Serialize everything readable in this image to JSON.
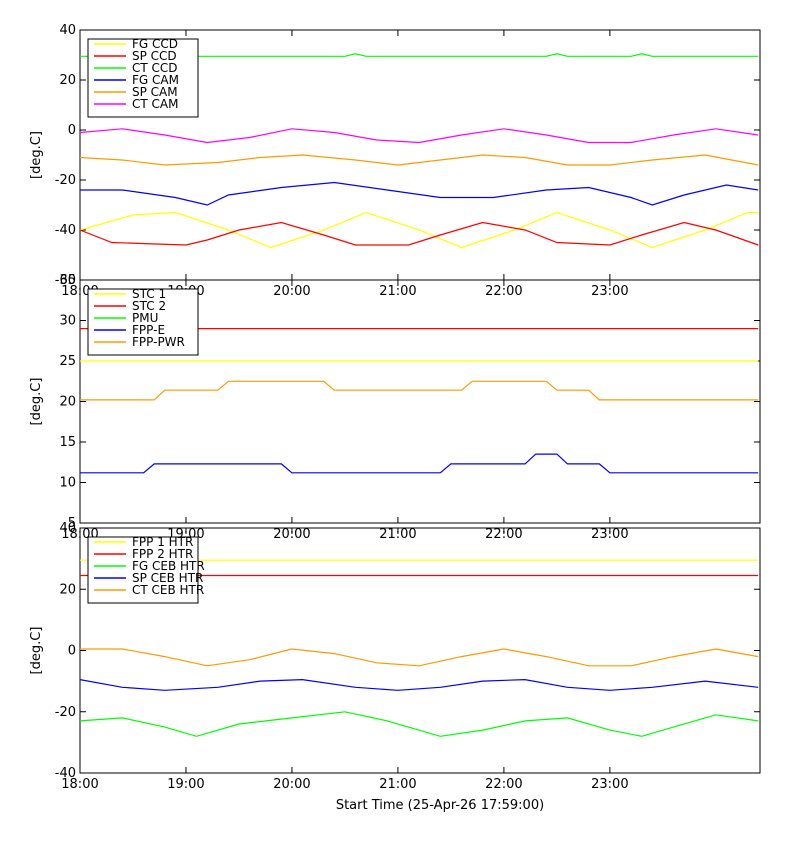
{
  "chart_data": [
    {
      "type": "line",
      "ylabel": "[deg.C]",
      "ylim": [
        -60,
        40
      ],
      "yticks": [
        -60,
        -40,
        -20,
        0,
        20,
        40
      ],
      "xlim": [
        "18:00",
        "23:25"
      ],
      "xticks": [
        "18:00",
        "19:00",
        "20:00",
        "21:00",
        "22:00",
        "23:00"
      ],
      "legend_position": "top-left",
      "series": [
        {
          "name": "FG CCD",
          "color": "#ffff00",
          "values": [
            [
              0,
              -40
            ],
            [
              0.5,
              -34
            ],
            [
              0.9,
              -33
            ],
            [
              1.4,
              -40
            ],
            [
              1.8,
              -47
            ],
            [
              2.3,
              -40
            ],
            [
              2.7,
              -33
            ],
            [
              3.2,
              -40
            ],
            [
              3.6,
              -47
            ],
            [
              4.1,
              -40
            ],
            [
              4.5,
              -33
            ],
            [
              5.0,
              -40
            ],
            [
              5.4,
              -47
            ],
            [
              5.9,
              -40
            ],
            [
              6.3,
              -33
            ],
            [
              6.4,
              -33
            ]
          ]
        },
        {
          "name": "SP CCD",
          "color": "#ff0000",
          "values": [
            [
              0,
              -40
            ],
            [
              0.3,
              -45
            ],
            [
              1.0,
              -46
            ],
            [
              1.2,
              -44
            ],
            [
              1.5,
              -40
            ],
            [
              1.9,
              -37
            ],
            [
              2.3,
              -42
            ],
            [
              2.6,
              -46
            ],
            [
              3.1,
              -46
            ],
            [
              3.4,
              -42
            ],
            [
              3.8,
              -37
            ],
            [
              4.2,
              -40
            ],
            [
              4.5,
              -45
            ],
            [
              5.0,
              -46
            ],
            [
              5.3,
              -42
            ],
            [
              5.7,
              -37
            ],
            [
              6.0,
              -40
            ],
            [
              6.4,
              -46
            ]
          ]
        },
        {
          "name": "CT CCD",
          "color": "#00ff00",
          "values": [
            [
              0,
              29.5
            ],
            [
              2.5,
              29.5
            ],
            [
              2.6,
              30.5
            ],
            [
              2.7,
              29.5
            ],
            [
              3.7,
              29.5
            ],
            [
              4.4,
              29.5
            ],
            [
              4.5,
              30.5
            ],
            [
              4.6,
              29.5
            ],
            [
              5.2,
              29.5
            ],
            [
              5.3,
              30.5
            ],
            [
              5.4,
              29.5
            ],
            [
              6.4,
              29.5
            ]
          ]
        },
        {
          "name": "FG CAM",
          "color": "#0000ff",
          "values": [
            [
              0,
              -24
            ],
            [
              0.4,
              -24
            ],
            [
              0.9,
              -27
            ],
            [
              1.2,
              -30
            ],
            [
              1.4,
              -26
            ],
            [
              1.9,
              -23
            ],
            [
              2.4,
              -21
            ],
            [
              2.9,
              -24
            ],
            [
              3.4,
              -27
            ],
            [
              3.9,
              -27
            ],
            [
              4.4,
              -24
            ],
            [
              4.8,
              -23
            ],
            [
              5.2,
              -27
            ],
            [
              5.4,
              -30
            ],
            [
              5.7,
              -26
            ],
            [
              6.1,
              -22
            ],
            [
              6.4,
              -24
            ]
          ]
        },
        {
          "name": "SP CAM",
          "color": "#ff9900",
          "values": [
            [
              0,
              -11
            ],
            [
              0.4,
              -12
            ],
            [
              0.8,
              -14
            ],
            [
              1.3,
              -13
            ],
            [
              1.7,
              -11
            ],
            [
              2.1,
              -10
            ],
            [
              2.6,
              -12
            ],
            [
              3.0,
              -14
            ],
            [
              3.4,
              -12
            ],
            [
              3.8,
              -10
            ],
            [
              4.2,
              -11
            ],
            [
              4.6,
              -14
            ],
            [
              5.0,
              -14
            ],
            [
              5.4,
              -12
            ],
            [
              5.9,
              -10
            ],
            [
              6.4,
              -14
            ]
          ]
        },
        {
          "name": "CT CAM",
          "color": "#ff00ff",
          "values": [
            [
              0,
              -1
            ],
            [
              0.4,
              0.5
            ],
            [
              0.8,
              -2
            ],
            [
              1.2,
              -5
            ],
            [
              1.6,
              -3
            ],
            [
              2.0,
              0.5
            ],
            [
              2.4,
              -1
            ],
            [
              2.8,
              -4
            ],
            [
              3.2,
              -5
            ],
            [
              3.6,
              -2
            ],
            [
              4.0,
              0.5
            ],
            [
              4.4,
              -2
            ],
            [
              4.8,
              -5
            ],
            [
              5.2,
              -5
            ],
            [
              5.6,
              -2
            ],
            [
              6.0,
              0.5
            ],
            [
              6.4,
              -2
            ]
          ]
        }
      ]
    },
    {
      "type": "line",
      "ylabel": "[deg.C]",
      "ylim": [
        5,
        35
      ],
      "yticks": [
        5,
        10,
        15,
        20,
        25,
        30,
        35
      ],
      "xlim": [
        "18:00",
        "23:25"
      ],
      "xticks": [
        "18:00",
        "19:00",
        "20:00",
        "21:00",
        "22:00",
        "23:00"
      ],
      "legend_position": "top-left",
      "series": [
        {
          "name": "STC 1",
          "color": "#ffff00",
          "values": [
            [
              0,
              25
            ],
            [
              1.0,
              25
            ],
            [
              2.0,
              25
            ],
            [
              3.0,
              25
            ],
            [
              4.0,
              25
            ],
            [
              5.0,
              25
            ],
            [
              6.4,
              25
            ]
          ]
        },
        {
          "name": "STC 2",
          "color": "#ff0000",
          "values": [
            [
              0,
              29
            ],
            [
              1.0,
              29
            ],
            [
              2.0,
              29
            ],
            [
              3.0,
              29
            ],
            [
              4.0,
              29
            ],
            [
              5.0,
              29
            ],
            [
              6.4,
              29
            ]
          ]
        },
        {
          "name": "PMU",
          "color": "#00ff00",
          "values": []
        },
        {
          "name": "FPP-E",
          "color": "#0000ff",
          "values": [
            [
              0,
              11.2
            ],
            [
              0.6,
              11.2
            ],
            [
              0.7,
              12.3
            ],
            [
              1.9,
              12.3
            ],
            [
              2.0,
              11.2
            ],
            [
              3.4,
              11.2
            ],
            [
              3.5,
              12.3
            ],
            [
              4.2,
              12.3
            ],
            [
              4.3,
              13.5
            ],
            [
              4.5,
              13.5
            ],
            [
              4.6,
              12.3
            ],
            [
              4.9,
              12.3
            ],
            [
              5.0,
              11.2
            ],
            [
              6.4,
              11.2
            ]
          ]
        },
        {
          "name": "FPP-PWR",
          "color": "#ff9900",
          "values": [
            [
              0,
              20.2
            ],
            [
              0.7,
              20.2
            ],
            [
              0.8,
              21.4
            ],
            [
              1.3,
              21.4
            ],
            [
              1.4,
              22.5
            ],
            [
              2.3,
              22.5
            ],
            [
              2.4,
              21.4
            ],
            [
              3.6,
              21.4
            ],
            [
              3.7,
              22.5
            ],
            [
              4.4,
              22.5
            ],
            [
              4.5,
              21.4
            ],
            [
              4.8,
              21.4
            ],
            [
              4.9,
              20.2
            ],
            [
              6.4,
              20.2
            ]
          ]
        }
      ]
    },
    {
      "type": "line",
      "ylabel": "[deg.C]",
      "ylim": [
        -40,
        40
      ],
      "yticks": [
        -40,
        -20,
        0,
        20,
        40
      ],
      "xlim": [
        "18:00",
        "23:25"
      ],
      "xticks": [
        "18:00",
        "19:00",
        "20:00",
        "21:00",
        "22:00",
        "23:00"
      ],
      "xlabel": "Start Time (25-Apr-26 17:59:00)",
      "legend_position": "top-left",
      "series": [
        {
          "name": "FPP 1 HTR",
          "color": "#ffff00",
          "values": [
            [
              0,
              29.5
            ],
            [
              6.4,
              29.5
            ]
          ]
        },
        {
          "name": "FPP 2 HTR",
          "color": "#ff0000",
          "values": [
            [
              0,
              24.5
            ],
            [
              6.4,
              24.5
            ]
          ]
        },
        {
          "name": "FG CEB HTR",
          "color": "#00ff00",
          "values": [
            [
              0,
              -23
            ],
            [
              0.4,
              -22
            ],
            [
              0.8,
              -25
            ],
            [
              1.1,
              -28
            ],
            [
              1.2,
              -27
            ],
            [
              1.5,
              -24
            ],
            [
              2.0,
              -22
            ],
            [
              2.5,
              -20
            ],
            [
              2.9,
              -23
            ],
            [
              3.4,
              -28
            ],
            [
              3.8,
              -26
            ],
            [
              4.2,
              -23
            ],
            [
              4.6,
              -22
            ],
            [
              5.0,
              -26
            ],
            [
              5.3,
              -28
            ],
            [
              5.6,
              -25
            ],
            [
              6.0,
              -21
            ],
            [
              6.4,
              -23
            ]
          ]
        },
        {
          "name": "SP CEB HTR",
          "color": "#0000ff",
          "values": [
            [
              0,
              -9.5
            ],
            [
              0.4,
              -12
            ],
            [
              0.8,
              -13
            ],
            [
              1.3,
              -12
            ],
            [
              1.7,
              -10
            ],
            [
              2.1,
              -9.5
            ],
            [
              2.6,
              -12
            ],
            [
              3.0,
              -13
            ],
            [
              3.4,
              -12
            ],
            [
              3.8,
              -10
            ],
            [
              4.2,
              -9.5
            ],
            [
              4.6,
              -12
            ],
            [
              5.0,
              -13
            ],
            [
              5.4,
              -12
            ],
            [
              5.9,
              -10
            ],
            [
              6.4,
              -12
            ]
          ]
        },
        {
          "name": "CT CEB HTR",
          "color": "#ff9900",
          "values": [
            [
              0,
              0.5
            ],
            [
              0.4,
              0.5
            ],
            [
              0.8,
              -2
            ],
            [
              1.2,
              -5
            ],
            [
              1.6,
              -3
            ],
            [
              2.0,
              0.5
            ],
            [
              2.4,
              -1
            ],
            [
              2.8,
              -4
            ],
            [
              3.2,
              -5
            ],
            [
              3.6,
              -2
            ],
            [
              4.0,
              0.5
            ],
            [
              4.4,
              -2
            ],
            [
              4.8,
              -5
            ],
            [
              5.2,
              -5
            ],
            [
              5.6,
              -2
            ],
            [
              6.0,
              0.5
            ],
            [
              6.4,
              -2
            ]
          ]
        }
      ]
    }
  ]
}
